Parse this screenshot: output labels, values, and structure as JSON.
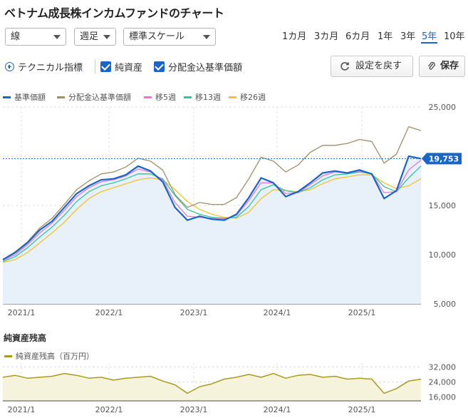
{
  "page_title": "ベトナム成長株インカムファンドのチャート",
  "controls": {
    "line_type": "線",
    "interval": "週足",
    "scale": "標準スケール"
  },
  "periods": [
    {
      "label": "1カ月",
      "active": false
    },
    {
      "label": "3カ月",
      "active": false
    },
    {
      "label": "6カ月",
      "active": false
    },
    {
      "label": "1年",
      "active": false
    },
    {
      "label": "3年",
      "active": false
    },
    {
      "label": "5年",
      "active": true
    },
    {
      "label": "10年",
      "active": false
    }
  ],
  "toolbar": {
    "technical_label": "テクニカル指標",
    "net_assets_label": "純資産",
    "dividend_nav_label": "分配金込基準価額",
    "reset_label": "設定を戻す",
    "save_label": "保存"
  },
  "legend": [
    {
      "name": "基準価額",
      "color": "#1a66c8"
    },
    {
      "name": "分配金込基準価額",
      "color": "#a08f6a"
    },
    {
      "name": "移5週",
      "color": "#e07ad8"
    },
    {
      "name": "移13週",
      "color": "#2ec79a"
    },
    {
      "name": "移26週",
      "color": "#f2c230"
    }
  ],
  "chart_data": [
    {
      "type": "line",
      "x_ticks": [
        "2021/1",
        "2022/1",
        "2023/1",
        "2024/1",
        "2025/1"
      ],
      "y_ticks": [
        5000,
        10000,
        15000,
        20000,
        25000
      ],
      "ylim": [
        5000,
        25000
      ],
      "current_value_label": "19,753",
      "series": [
        {
          "name": "基準価額",
          "values": [
            9500,
            10200,
            11200,
            12500,
            13400,
            14800,
            16200,
            17000,
            17600,
            17700,
            18100,
            19000,
            18500,
            17400,
            14800,
            13500,
            13900,
            13600,
            13500,
            14100,
            15800,
            17800,
            17300,
            15900,
            16400,
            17300,
            18300,
            18500,
            18300,
            18600,
            18200,
            15700,
            16500,
            20000,
            19753
          ]
        },
        {
          "name": "分配金込基準価額",
          "values": [
            9500,
            10300,
            11300,
            12700,
            13700,
            15100,
            16600,
            17500,
            18200,
            18400,
            18900,
            19800,
            19500,
            18600,
            16100,
            14800,
            15300,
            15100,
            15100,
            15800,
            17700,
            19900,
            19500,
            18400,
            19100,
            20400,
            21100,
            21100,
            21300,
            21700,
            21500,
            19300,
            20200,
            23000,
            22600
          ]
        },
        {
          "name": "移5週",
          "values": [
            9400,
            10000,
            11000,
            12200,
            13200,
            14500,
            15900,
            16800,
            17400,
            17600,
            18000,
            18700,
            18400,
            17600,
            15300,
            13900,
            13800,
            13700,
            13600,
            14000,
            15500,
            17300,
            17300,
            16200,
            16300,
            17100,
            18000,
            18400,
            18300,
            18500,
            18200,
            16300,
            16400,
            18600,
            19600
          ]
        },
        {
          "name": "移13週",
          "values": [
            9300,
            9800,
            10700,
            11800,
            12800,
            14000,
            15400,
            16400,
            17000,
            17300,
            17700,
            18200,
            18200,
            17700,
            16000,
            14600,
            14100,
            13800,
            13700,
            13800,
            14900,
            16600,
            17100,
            16500,
            16300,
            16800,
            17600,
            18100,
            18200,
            18400,
            18200,
            16900,
            16400,
            17800,
            19000
          ]
        },
        {
          "name": "移26週",
          "values": [
            9200,
            9500,
            10200,
            11200,
            12200,
            13300,
            14600,
            15700,
            16400,
            16800,
            17200,
            17600,
            17800,
            17600,
            16600,
            15400,
            14600,
            14100,
            13800,
            13700,
            14300,
            15700,
            16600,
            16500,
            16400,
            16600,
            17200,
            17700,
            17900,
            18100,
            18100,
            17300,
            16700,
            17000,
            17700
          ]
        }
      ]
    },
    {
      "type": "area",
      "title": "純資産残高",
      "y_ticks": [
        16000,
        24000,
        32000
      ],
      "ylim": [
        14000,
        34000
      ],
      "x_ticks": [
        "2021/1",
        "2022/1",
        "2023/1",
        "2024/1",
        "2025/1"
      ],
      "series": [
        {
          "name": "純資産残高（百万円）",
          "color": "#a89b1e",
          "values": [
            26500,
            27500,
            26000,
            26500,
            27000,
            28500,
            27500,
            26000,
            26500,
            25000,
            26000,
            26500,
            27000,
            24500,
            22500,
            18000,
            21500,
            23000,
            25500,
            26500,
            28000,
            26500,
            28500,
            26000,
            27500,
            28000,
            26500,
            27000,
            25500,
            26000,
            25500,
            18000,
            20500,
            24500,
            25500
          ]
        }
      ]
    }
  ]
}
